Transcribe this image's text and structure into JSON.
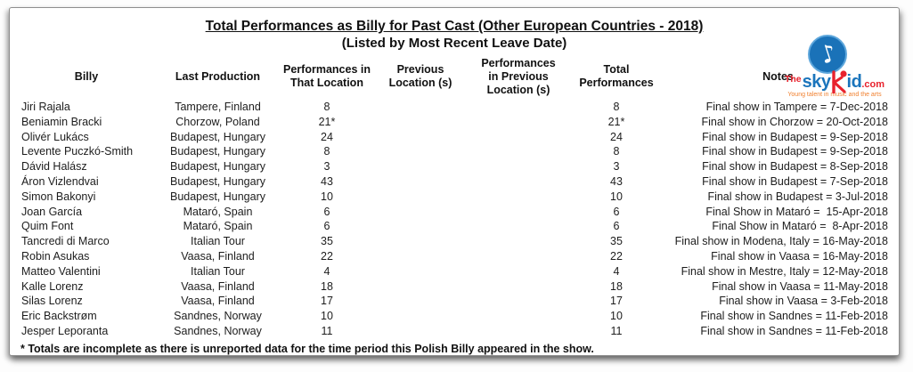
{
  "header": {
    "title": "Total Performances as Billy for Past Cast (Other European Countries - 2018)",
    "subtitle": "(Listed by Most Recent Leave Date)"
  },
  "logo": {
    "the": "The",
    "sky": "sky",
    "kid_suffix": "id",
    "dotcom": ".com",
    "tagline": "Young talent in music and the arts",
    "colors": {
      "blue": "#1b75bc",
      "red": "#e8222d",
      "tagline_orange": "#f07f2d"
    }
  },
  "table": {
    "columns": [
      "Billy",
      "Last Production",
      "Performances in\nThat Location",
      "Previous\nLocation (s)",
      "Performances\nin Previous\nLocation (s)",
      "Total\nPerformances",
      "Notes"
    ],
    "rows": [
      [
        "Jiri Rajala",
        "Tampere, Finland",
        "8",
        "",
        "",
        "8",
        "Final show in Tampere = 7-Dec-2018"
      ],
      [
        "Beniamin Bracki",
        "Chorzow, Poland",
        "21*",
        "",
        "",
        "21*",
        "Final show in Chorzow = 20-Oct-2018"
      ],
      [
        "Olivér Lukács",
        "Budapest, Hungary",
        "24",
        "",
        "",
        "24",
        "Final show in Budapest = 9-Sep-2018"
      ],
      [
        "Levente Puczkó-Smith",
        "Budapest, Hungary",
        "8",
        "",
        "",
        "8",
        "Final show in Budapest = 9-Sep-2018"
      ],
      [
        "Dávid Halász",
        "Budapest, Hungary",
        "3",
        "",
        "",
        "3",
        "Final show in Budapest = 8-Sep-2018"
      ],
      [
        "Áron Vizlendvai",
        "Budapest, Hungary",
        "43",
        "",
        "",
        "43",
        "Final show in Budapest = 7-Sep-2018"
      ],
      [
        "Simon Bakonyi",
        "Budapest, Hungary",
        "10",
        "",
        "",
        "10",
        "Final show in Budapest = 3-Jul-2018"
      ],
      [
        "Joan García",
        "Mataró, Spain",
        "6",
        "",
        "",
        "6",
        "Final Show in Mataró =  15-Apr-2018"
      ],
      [
        "Quim Font",
        "Mataró, Spain",
        "6",
        "",
        "",
        "6",
        "Final Show in Mataró =  8-Apr-2018"
      ],
      [
        "Tancredi di Marco",
        "Italian Tour",
        "35",
        "",
        "",
        "35",
        "Final show in Modena, Italy = 16-May-2018"
      ],
      [
        "Robin Asukas",
        "Vaasa, Finland",
        "22",
        "",
        "",
        "22",
        "Final show in Vaasa = 16-May-2018"
      ],
      [
        "Matteo Valentini",
        "Italian Tour",
        "4",
        "",
        "",
        "4",
        "Final show in Mestre, Italy = 12-May-2018"
      ],
      [
        "Kalle Lorenz",
        "Vaasa, Finland",
        "18",
        "",
        "",
        "18",
        "Final show in Vaasa = 11-May-2018"
      ],
      [
        "Silas Lorenz",
        "Vaasa, Finland",
        "17",
        "",
        "",
        "17",
        "Final show in Vaasa = 3-Feb-2018"
      ],
      [
        "Eric Backstrøm",
        "Sandnes, Norway",
        "10",
        "",
        "",
        "10",
        "Final show in Sandnes = 11-Feb-2018"
      ],
      [
        "Jesper Leporanta",
        "Sandnes, Norway",
        "11",
        "",
        "",
        "11",
        "Final show in Sandnes = 11-Feb-2018"
      ]
    ]
  },
  "footnote": "* Totals are incomplete as there is unreported data for the time period this Polish Billy appeared in the show."
}
